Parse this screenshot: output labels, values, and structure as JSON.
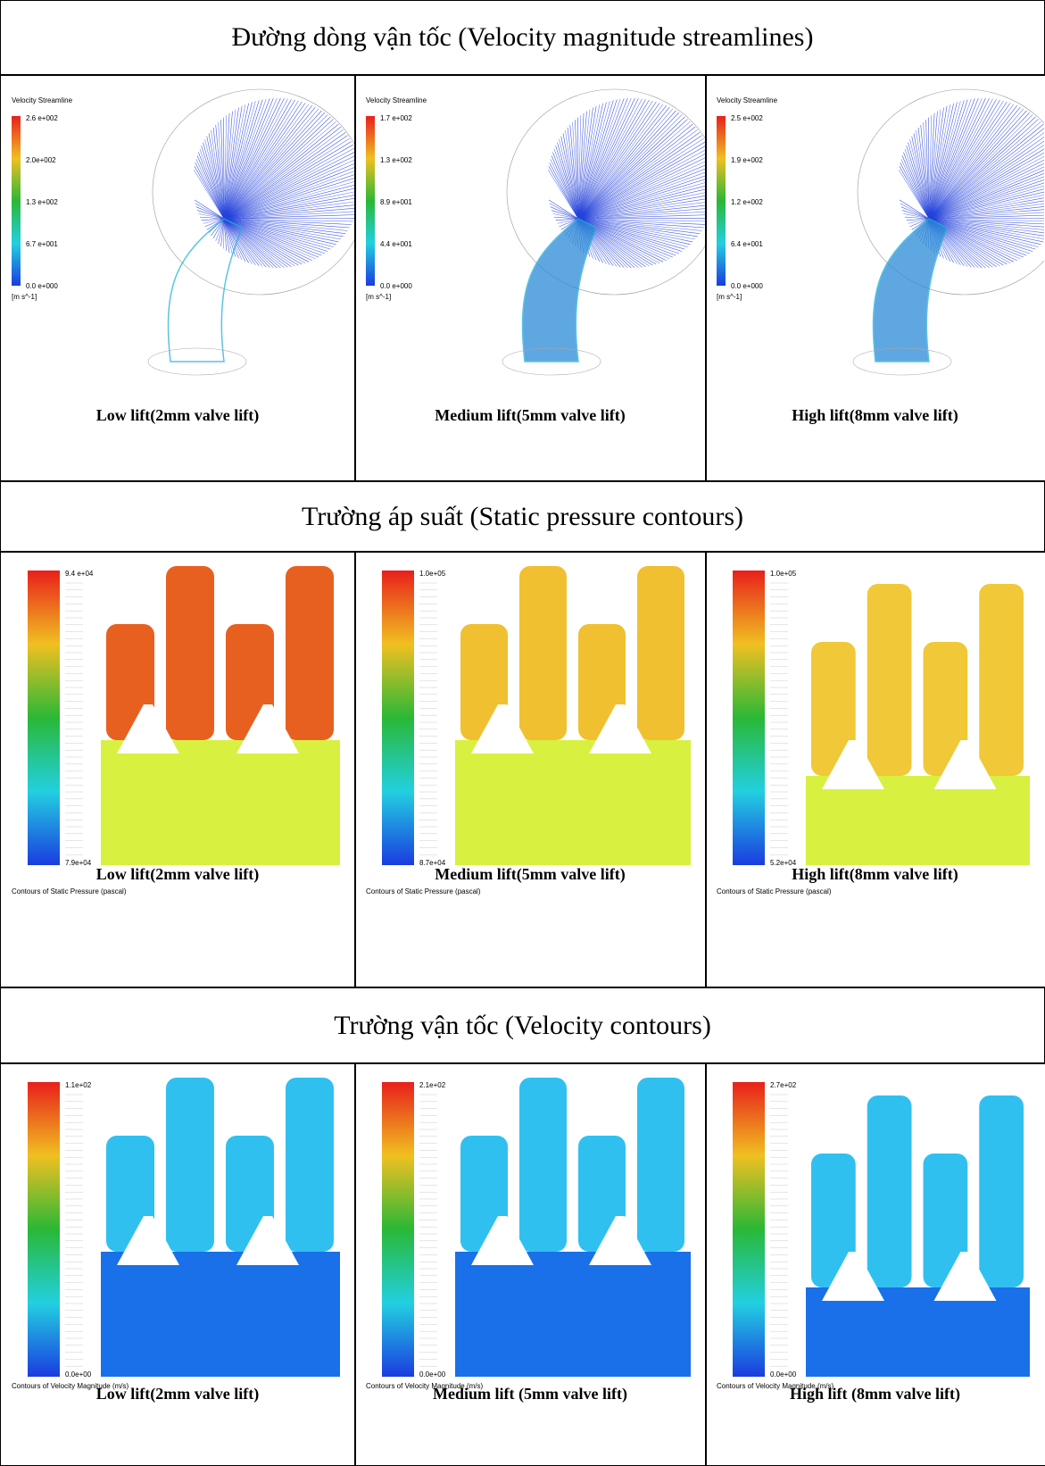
{
  "sections": [
    {
      "title": "Đường dòng vận tốc (Velocity magnitude streamlines)",
      "panels": [
        {
          "caption": "Low lift(2mm valve lift)",
          "legend_title": "Velocity Streamline",
          "legend_labels": [
            "2.6 e+002",
            "2.0e+002",
            "1.3 e+002",
            "6.7 e+001",
            "0.0  e+000"
          ],
          "unit": "[m s^-1]"
        },
        {
          "caption": "Medium  lift(5mm valve lift)",
          "legend_title": "Velocity Streamline",
          "legend_labels": [
            "1.7 e+002",
            "1.3 e+002",
            "8.9 e+001",
            "4.4 e+001",
            "0.0 e+000"
          ],
          "unit": "[m s^-1]"
        },
        {
          "caption": "High lift(8mm valve lift)",
          "legend_title": "Velocity Streamline",
          "legend_labels": [
            "2.5 e+002",
            "1.9 e+002",
            "1.2 e+002",
            "6.4 e+001",
            "0.0 e+000"
          ],
          "unit": "[m s^-1]"
        }
      ]
    },
    {
      "title": "Trường áp suất (Static pressure contours)",
      "panels": [
        {
          "caption": "Low lift(2mm valve lift)",
          "legend_labels": [
            "9.4 e+04",
            "7.9e+04"
          ],
          "footer": "Contours of Static Pressure (pascal)"
        },
        {
          "caption": "Medium  lift(5mm valve lift)",
          "legend_labels": [
            "1.0e+05",
            "8.7e+04"
          ],
          "footer": "Contours of Static Pressure (pascal)"
        },
        {
          "caption": "High lift(8mm valve lift)",
          "legend_labels": [
            "1.0e+05",
            "5.2e+04"
          ],
          "footer": "Contours of Static Pressure (pascal)"
        }
      ]
    },
    {
      "title": "Trường vận tốc (Velocity contours)",
      "panels": [
        {
          "caption": "Low lift(2mm valve lift)",
          "legend_labels": [
            "1.1e+02",
            "0.0e+00"
          ],
          "footer": "Contours of Velocity Magnitude (m/s)"
        },
        {
          "caption": "Medium  lift (5mm valve lift)",
          "legend_labels": [
            "2.1e+02",
            "0.0e+00"
          ],
          "footer": "Contours of Velocity Magnitude (m/s)"
        },
        {
          "caption": "High lift (8mm valve lift)",
          "legend_labels": [
            "2.7e+02",
            "0.0e+00"
          ],
          "footer": "Contours of Velocity Magnitude (m/s)"
        }
      ]
    }
  ]
}
